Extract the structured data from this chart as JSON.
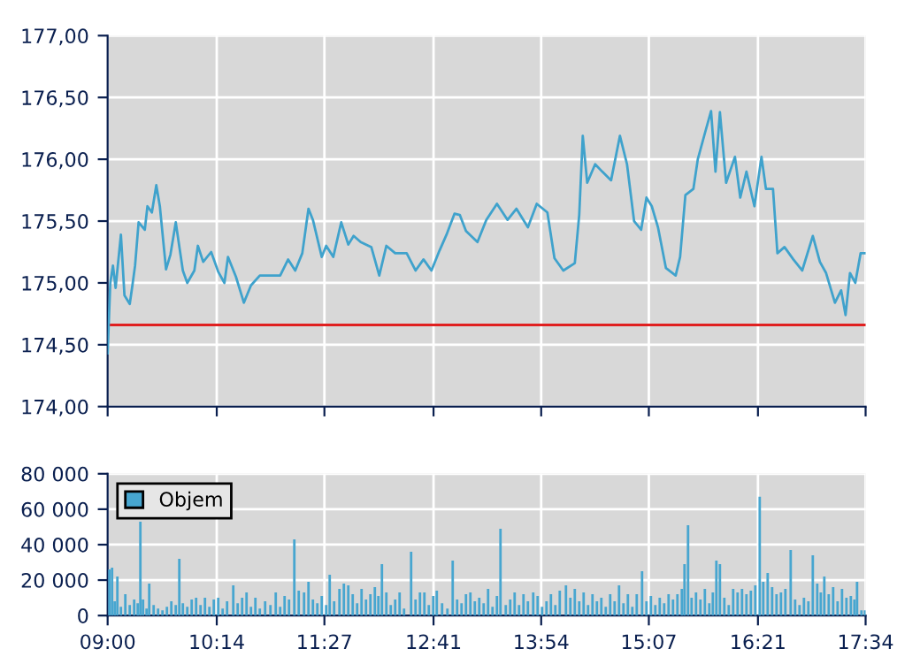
{
  "chart_data": [
    {
      "type": "line",
      "tick_labels": "y",
      "grid": true,
      "legend": false,
      "marker": "none",
      "line_style": "solid",
      "xlim": [
        9,
        17.5667
      ],
      "xticks": [
        {
          "value": 9,
          "label": null
        },
        {
          "value": 10.2333,
          "label": null
        },
        {
          "value": 11.45,
          "label": null
        },
        {
          "value": 12.6833,
          "label": null
        },
        {
          "value": 13.9,
          "label": null
        },
        {
          "value": 15.1167,
          "label": null
        },
        {
          "value": 16.35,
          "label": null
        },
        {
          "value": 17.5667,
          "label": null
        }
      ],
      "ylim": [
        174,
        177
      ],
      "yticks": [
        {
          "value": 174,
          "label": "174,00"
        },
        {
          "value": 174.5,
          "label": "174,50"
        },
        {
          "value": 175,
          "label": "175,00"
        },
        {
          "value": 175.5,
          "label": "175,50"
        },
        {
          "value": 176,
          "label": "176,00"
        },
        {
          "value": 176.5,
          "label": "176,50"
        },
        {
          "value": 177,
          "label": "177,00"
        }
      ],
      "ref_lines": [
        {
          "axis": "y",
          "value": 174.66,
          "color": "#e02020",
          "line_style": "solid"
        }
      ],
      "series": [
        {
          "color": "#3fa2cc",
          "x": [
            9.0,
            9.03,
            9.06,
            9.09,
            9.15,
            9.19,
            9.25,
            9.28,
            9.31,
            9.35,
            9.42,
            9.45,
            9.5,
            9.55,
            9.59,
            9.66,
            9.71,
            9.77,
            9.85,
            9.9,
            9.98,
            10.02,
            10.08,
            10.17,
            10.25,
            10.32,
            10.36,
            10.45,
            10.54,
            10.62,
            10.72,
            10.95,
            11.04,
            11.12,
            11.2,
            11.27,
            11.32,
            11.42,
            11.47,
            11.55,
            11.64,
            11.72,
            11.78,
            11.86,
            11.98,
            12.07,
            12.15,
            12.25,
            12.38,
            12.48,
            12.57,
            12.66,
            12.75,
            12.83,
            12.92,
            12.98,
            13.05,
            13.18,
            13.28,
            13.4,
            13.52,
            13.62,
            13.75,
            13.85,
            13.97,
            14.05,
            14.15,
            14.28,
            14.33,
            14.37,
            14.42,
            14.51,
            14.59,
            14.69,
            14.79,
            14.87,
            14.95,
            15.03,
            15.09,
            15.15,
            15.22,
            15.31,
            15.42,
            15.47,
            15.53,
            15.62,
            15.67,
            15.75,
            15.82,
            15.87,
            15.92,
            15.99,
            16.09,
            16.15,
            16.22,
            16.31,
            16.39,
            16.44,
            16.52,
            16.57,
            16.65,
            16.75,
            16.85,
            16.97,
            17.05,
            17.12,
            17.22,
            17.29,
            17.34,
            17.39,
            17.45,
            17.51,
            17.56
          ],
          "values": [
            174.43,
            175.0,
            175.14,
            174.96,
            175.39,
            174.9,
            174.83,
            174.98,
            175.14,
            175.49,
            175.43,
            175.62,
            175.57,
            175.79,
            175.62,
            175.11,
            175.23,
            175.49,
            175.1,
            175.0,
            175.1,
            175.3,
            175.17,
            175.25,
            175.09,
            175.0,
            175.21,
            175.05,
            174.84,
            174.98,
            175.06,
            175.06,
            175.19,
            175.1,
            175.24,
            175.6,
            175.51,
            175.21,
            175.3,
            175.21,
            175.49,
            175.31,
            175.38,
            175.33,
            175.29,
            175.06,
            175.3,
            175.24,
            175.24,
            175.1,
            175.19,
            175.1,
            175.26,
            175.39,
            175.56,
            175.55,
            175.42,
            175.33,
            175.51,
            175.64,
            175.51,
            175.6,
            175.45,
            175.64,
            175.57,
            175.2,
            175.1,
            175.16,
            175.55,
            176.19,
            175.81,
            175.96,
            175.9,
            175.83,
            176.19,
            175.96,
            175.5,
            175.43,
            175.69,
            175.62,
            175.45,
            175.12,
            175.06,
            175.21,
            175.71,
            175.76,
            176.0,
            176.21,
            176.39,
            175.9,
            176.38,
            175.81,
            176.02,
            175.69,
            175.9,
            175.62,
            176.02,
            175.76,
            175.76,
            175.24,
            175.29,
            175.19,
            175.1,
            175.38,
            175.17,
            175.08,
            174.84,
            174.94,
            174.74,
            175.08,
            175.0,
            175.24,
            175.24
          ]
        }
      ]
    },
    {
      "type": "bar",
      "grid": true,
      "legend": "top left",
      "xlim": [
        9,
        17.5667
      ],
      "xticks": [
        {
          "value": 9,
          "label": "09:00"
        },
        {
          "value": 10.2333,
          "label": "10:14"
        },
        {
          "value": 11.45,
          "label": "11:27"
        },
        {
          "value": 12.6833,
          "label": "12:41"
        },
        {
          "value": 13.9,
          "label": "13:54"
        },
        {
          "value": 15.1167,
          "label": "15:07"
        },
        {
          "value": 16.35,
          "label": "16:21"
        },
        {
          "value": 17.5667,
          "label": "17:34"
        }
      ],
      "ylim": [
        0,
        80000
      ],
      "yticks": [
        {
          "value": 0,
          "label": "0"
        },
        {
          "value": 20000,
          "label": "20 000"
        },
        {
          "value": 40000,
          "label": "40 000"
        },
        {
          "value": 60000,
          "label": "60 000"
        },
        {
          "value": 80000,
          "label": "80 000"
        }
      ],
      "series": [
        {
          "name": "Objem",
          "color": "#47a6d0",
          "x": [
            9.02,
            9.05,
            9.08,
            9.11,
            9.15,
            9.2,
            9.25,
            9.3,
            9.34,
            9.37,
            9.4,
            9.44,
            9.47,
            9.52,
            9.57,
            9.62,
            9.67,
            9.72,
            9.77,
            9.81,
            9.85,
            9.9,
            9.95,
            10.0,
            10.05,
            10.1,
            10.15,
            10.2,
            10.25,
            10.3,
            10.35,
            10.42,
            10.47,
            10.52,
            10.57,
            10.62,
            10.67,
            10.72,
            10.78,
            10.84,
            10.9,
            10.95,
            11.0,
            11.05,
            11.11,
            11.16,
            11.22,
            11.27,
            11.32,
            11.37,
            11.42,
            11.47,
            11.51,
            11.56,
            11.62,
            11.67,
            11.72,
            11.77,
            11.82,
            11.87,
            11.92,
            11.97,
            12.02,
            12.06,
            12.1,
            12.15,
            12.2,
            12.25,
            12.3,
            12.35,
            12.43,
            12.48,
            12.53,
            12.58,
            12.63,
            12.68,
            12.72,
            12.78,
            12.84,
            12.9,
            12.95,
            13.0,
            13.05,
            13.1,
            13.15,
            13.2,
            13.25,
            13.3,
            13.35,
            13.4,
            13.44,
            13.5,
            13.55,
            13.6,
            13.65,
            13.7,
            13.75,
            13.81,
            13.86,
            13.91,
            13.96,
            14.01,
            14.06,
            14.11,
            14.18,
            14.23,
            14.28,
            14.33,
            14.38,
            14.43,
            14.48,
            14.53,
            14.58,
            14.63,
            14.68,
            14.73,
            14.78,
            14.83,
            14.88,
            14.93,
            14.98,
            15.04,
            15.09,
            15.14,
            15.19,
            15.24,
            15.29,
            15.34,
            15.39,
            15.44,
            15.49,
            15.52,
            15.56,
            15.6,
            15.65,
            15.7,
            15.75,
            15.8,
            15.84,
            15.88,
            15.92,
            15.97,
            16.02,
            16.07,
            16.12,
            16.17,
            16.22,
            16.27,
            16.32,
            16.37,
            16.41,
            16.46,
            16.51,
            16.56,
            16.61,
            16.66,
            16.72,
            16.77,
            16.82,
            16.87,
            16.92,
            16.97,
            17.02,
            17.06,
            17.1,
            17.15,
            17.2,
            17.25,
            17.3,
            17.35,
            17.4,
            17.44,
            17.47,
            17.52,
            17.56
          ],
          "values": [
            26000,
            27000,
            8000,
            22000,
            5000,
            12000,
            6000,
            9000,
            7000,
            53000,
            9000,
            4000,
            18000,
            6000,
            4000,
            3000,
            5000,
            8000,
            6000,
            32000,
            7000,
            5000,
            9000,
            10000,
            6000,
            10000,
            5000,
            9000,
            10000,
            4000,
            8000,
            17000,
            7000,
            10000,
            13000,
            5000,
            10000,
            4000,
            8000,
            6000,
            13000,
            5000,
            11000,
            9000,
            43000,
            14000,
            13000,
            19000,
            9000,
            7000,
            11000,
            6000,
            23000,
            8000,
            15000,
            18000,
            17000,
            12000,
            7000,
            15000,
            9000,
            12000,
            16000,
            11000,
            29000,
            13000,
            6000,
            9000,
            13000,
            4000,
            36000,
            9000,
            13000,
            13000,
            6000,
            11000,
            14000,
            7000,
            4000,
            31000,
            9000,
            7000,
            12000,
            13000,
            8000,
            10000,
            7000,
            15000,
            5000,
            11000,
            49000,
            6000,
            9000,
            13000,
            6000,
            12000,
            8000,
            13000,
            11000,
            5000,
            8000,
            12000,
            6000,
            14000,
            17000,
            10000,
            15000,
            8000,
            13000,
            6000,
            12000,
            8000,
            10000,
            5000,
            12000,
            8000,
            17000,
            7000,
            12000,
            5000,
            12000,
            25000,
            8000,
            11000,
            6000,
            10000,
            7000,
            12000,
            9000,
            12000,
            15000,
            29000,
            51000,
            10000,
            13000,
            9000,
            15000,
            7000,
            13000,
            31000,
            29000,
            10000,
            6000,
            15000,
            13000,
            15000,
            12000,
            14000,
            17000,
            67000,
            19000,
            24000,
            16000,
            12000,
            13000,
            15000,
            37000,
            9000,
            6000,
            10000,
            8000,
            34000,
            18000,
            13000,
            22000,
            12000,
            16000,
            8000,
            15000,
            10000,
            11000,
            9000,
            19000,
            3000,
            3000
          ]
        }
      ]
    }
  ]
}
